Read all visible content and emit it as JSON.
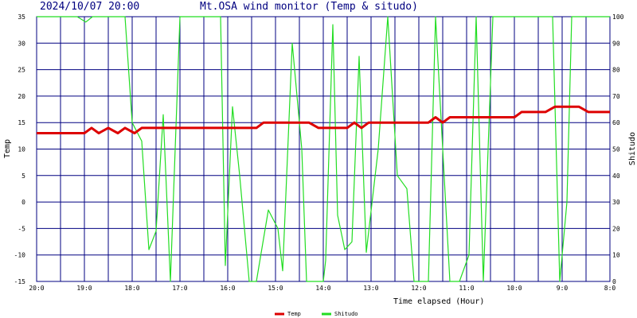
{
  "header": {
    "timestamp": "2024/10/07 20:00",
    "title": "Mt.OSA wind monitor (Temp & situdo)"
  },
  "chart_data": {
    "type": "line",
    "title": "Mt.OSA wind monitor (Temp & situdo)",
    "xlabel": "Time elapsed (Hour)",
    "ylabel_left": "Temp",
    "ylabel_right": "Shitudo",
    "x_range": [
      0,
      12
    ],
    "ylim_left": [
      -15,
      35
    ],
    "ylim_right": [
      0,
      100
    ],
    "yticks_left": [
      "35",
      "30",
      "25",
      "20",
      "15",
      "10",
      "5",
      "0",
      "-5",
      "-10",
      "-15"
    ],
    "yticks_right": [
      "100",
      "90",
      "80",
      "70",
      "60",
      "50",
      "40",
      "30",
      "20",
      "10",
      "0"
    ],
    "xticks": [
      {
        "label": "20:0",
        "x": 0
      },
      {
        "label": "19:0",
        "x": 1
      },
      {
        "label": "18:0",
        "x": 2
      },
      {
        "label": "17:0",
        "x": 3
      },
      {
        "label": "16:0",
        "x": 4
      },
      {
        "label": "15:0",
        "x": 5
      },
      {
        "label": "14:0",
        "x": 6
      },
      {
        "label": "13:0",
        "x": 7
      },
      {
        "label": "12:0",
        "x": 8
      },
      {
        "label": "11:0",
        "x": 9
      },
      {
        "label": "10:0",
        "x": 10
      },
      {
        "label": "9:0",
        "x": 11
      },
      {
        "label": "8:0",
        "x": 12
      }
    ],
    "vgrid_steps": 24,
    "grid": true,
    "legend": "bottom",
    "series": [
      {
        "name": "Temp",
        "axis": "left",
        "color": "#dd0000",
        "points": [
          [
            0,
            13
          ],
          [
            1,
            13
          ],
          [
            1.15,
            14
          ],
          [
            1.3,
            13
          ],
          [
            1.5,
            14
          ],
          [
            1.7,
            13
          ],
          [
            1.85,
            14
          ],
          [
            2.05,
            13
          ],
          [
            2.2,
            14
          ],
          [
            4.5,
            14
          ],
          [
            4.6,
            14
          ],
          [
            4.75,
            15
          ],
          [
            5.7,
            15
          ],
          [
            5.9,
            14
          ],
          [
            6.5,
            14
          ],
          [
            6.65,
            15
          ],
          [
            6.8,
            14
          ],
          [
            6.95,
            15
          ],
          [
            8.2,
            15
          ],
          [
            8.35,
            16
          ],
          [
            8.5,
            15
          ],
          [
            8.65,
            16
          ],
          [
            10,
            16
          ],
          [
            10.15,
            17
          ],
          [
            10.65,
            17
          ],
          [
            10.85,
            18
          ],
          [
            11.35,
            18
          ],
          [
            11.55,
            17
          ],
          [
            12,
            17
          ]
        ]
      },
      {
        "name": "Shitudo",
        "axis": "right",
        "color": "#22dd22",
        "points": [
          [
            0,
            100
          ],
          [
            0.85,
            100
          ],
          [
            1.03,
            98
          ],
          [
            1.17,
            100
          ],
          [
            1.85,
            100
          ],
          [
            2.0,
            60
          ],
          [
            2.2,
            53
          ],
          [
            2.35,
            12
          ],
          [
            2.5,
            19
          ],
          [
            2.65,
            63
          ],
          [
            2.8,
            0
          ],
          [
            3.0,
            100
          ],
          [
            3.15,
            100
          ],
          [
            3.85,
            100
          ],
          [
            3.95,
            6
          ],
          [
            4.1,
            66
          ],
          [
            4.25,
            40
          ],
          [
            4.45,
            0
          ],
          [
            4.6,
            0
          ],
          [
            4.85,
            27
          ],
          [
            5.05,
            20
          ],
          [
            5.15,
            4
          ],
          [
            5.35,
            90
          ],
          [
            5.55,
            50
          ],
          [
            5.65,
            0
          ],
          [
            6.0,
            0
          ],
          [
            6.05,
            8
          ],
          [
            6.2,
            97
          ],
          [
            6.3,
            25
          ],
          [
            6.45,
            12
          ],
          [
            6.6,
            15
          ],
          [
            6.75,
            85
          ],
          [
            6.9,
            11
          ],
          [
            7.15,
            50
          ],
          [
            7.35,
            100
          ],
          [
            7.55,
            40
          ],
          [
            7.75,
            35
          ],
          [
            7.9,
            0
          ],
          [
            8.2,
            0
          ],
          [
            8.35,
            100
          ],
          [
            8.5,
            50
          ],
          [
            8.65,
            0
          ],
          [
            8.85,
            0
          ],
          [
            9.05,
            10
          ],
          [
            9.2,
            100
          ],
          [
            9.35,
            0
          ],
          [
            9.55,
            100
          ],
          [
            10.8,
            100
          ],
          [
            10.95,
            0
          ],
          [
            11.1,
            30
          ],
          [
            11.2,
            100
          ],
          [
            12,
            100
          ]
        ]
      }
    ]
  }
}
